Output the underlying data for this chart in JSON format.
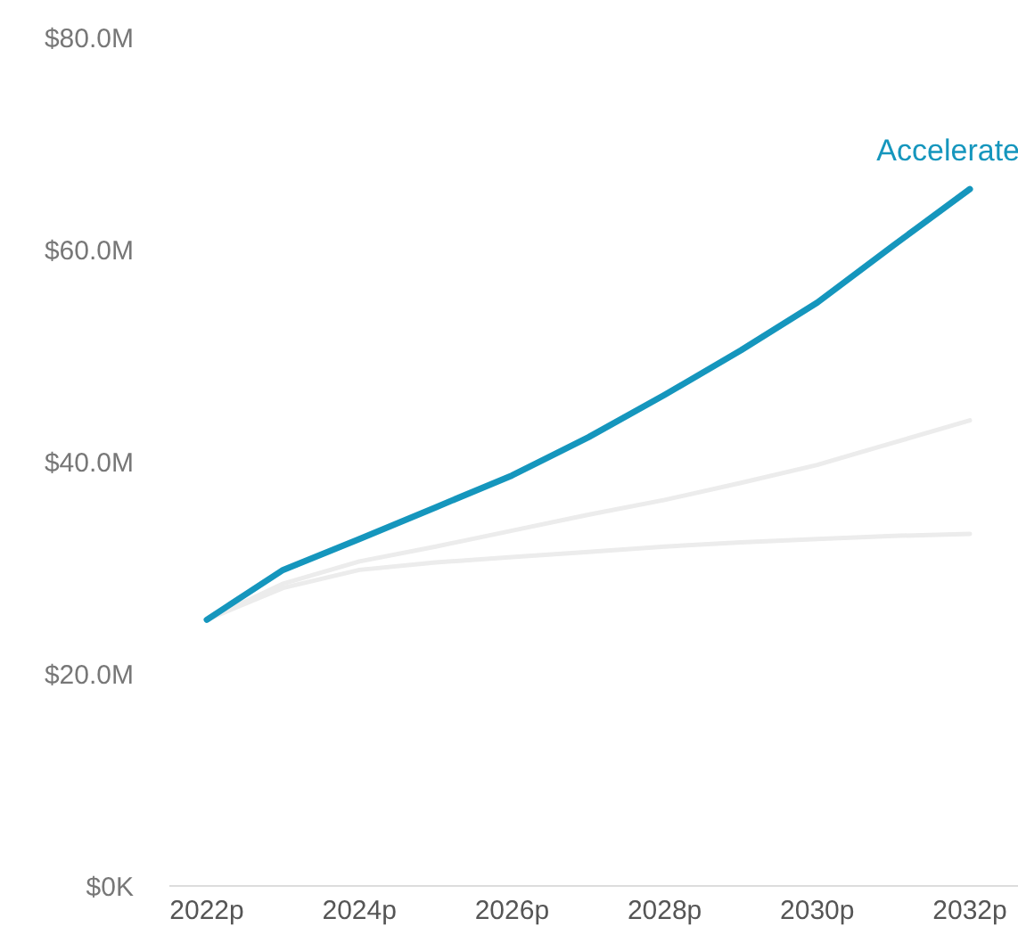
{
  "chart_data": {
    "type": "line",
    "categories": [
      "2022p",
      null,
      "2024p",
      null,
      "2026p",
      null,
      "2028p",
      null,
      "2030p",
      null,
      "2032p"
    ],
    "series": [
      {
        "color": "#ececec",
        "values": [
          25.1,
          28.1,
          29.8,
          30.5,
          31.0,
          31.5,
          32.0,
          32.4,
          32.7,
          33.0,
          33.2
        ]
      },
      {
        "color": "#ececec",
        "values": [
          25.1,
          28.5,
          30.6,
          32.0,
          33.5,
          35.0,
          36.4,
          38.0,
          39.7,
          41.8,
          43.9
        ]
      },
      {
        "name": "Accelerate",
        "color": "#1596bd",
        "values": [
          25.1,
          29.8,
          32.7,
          35.7,
          38.7,
          42.3,
          46.3,
          50.5,
          55.0,
          60.4,
          65.7
        ]
      }
    ],
    "ylim": [
      0,
      80
    ],
    "yticks": [
      {
        "value": 0,
        "label": "$0K"
      },
      {
        "value": 20,
        "label": "$20.0M"
      },
      {
        "value": 40,
        "label": "$40.0M"
      },
      {
        "value": 60,
        "label": "$60.0M"
      },
      {
        "value": 80,
        "label": "$80.0M"
      }
    ],
    "grid": false,
    "legend": false,
    "marker": "none",
    "line_style": "solid"
  }
}
